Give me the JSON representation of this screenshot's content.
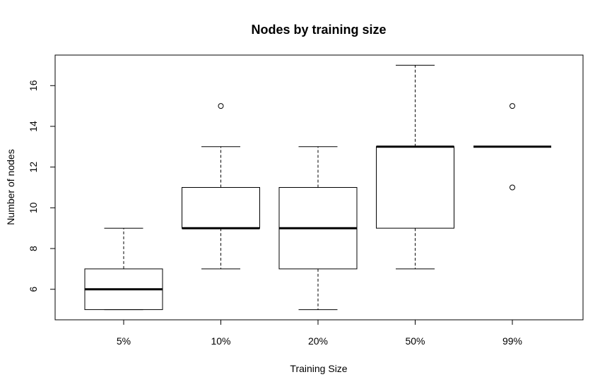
{
  "chart_data": {
    "type": "boxplot",
    "title": "Nodes by training size",
    "xlabel": "Training Size",
    "ylabel": "Number of nodes",
    "categories": [
      "5%",
      "10%",
      "20%",
      "50%",
      "99%"
    ],
    "yticks": [
      6,
      8,
      10,
      12,
      14,
      16
    ],
    "ylim": [
      4.5,
      17.5
    ],
    "boxes": [
      {
        "category": "5%",
        "whisker_low": 5,
        "q1": 5,
        "median": 6,
        "q3": 7,
        "whisker_high": 9,
        "outliers": []
      },
      {
        "category": "10%",
        "whisker_low": 7,
        "q1": 9,
        "median": 9,
        "q3": 11,
        "whisker_high": 13,
        "outliers": [
          15
        ]
      },
      {
        "category": "20%",
        "whisker_low": 5,
        "q1": 7,
        "median": 9,
        "q3": 11,
        "whisker_high": 13,
        "outliers": []
      },
      {
        "category": "50%",
        "whisker_low": 7,
        "q1": 9,
        "median": 13,
        "q3": 13,
        "whisker_high": 17,
        "outliers": []
      },
      {
        "category": "99%",
        "whisker_low": 13,
        "q1": 13,
        "median": 13,
        "q3": 13,
        "whisker_high": 13,
        "outliers": [
          15,
          11
        ]
      }
    ],
    "grid": false,
    "legend": "none"
  }
}
